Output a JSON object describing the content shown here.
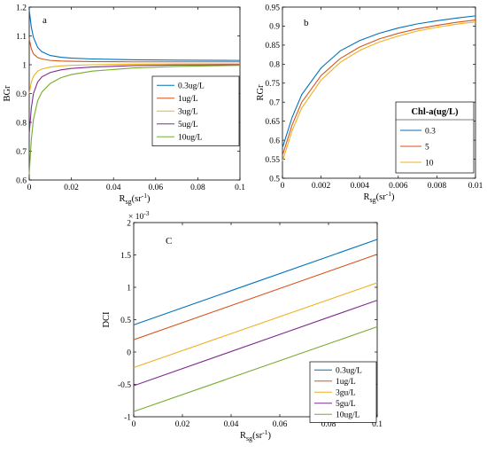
{
  "colors": [
    "#0072BD",
    "#D95319",
    "#EDB120",
    "#7E2F8E",
    "#77AC30"
  ],
  "chart_data": [
    {
      "id": "a",
      "type": "line",
      "panel_label": "a",
      "xlabel_main": "R",
      "xlabel_sub": "sg",
      "xlabel_unit": "(sr",
      "xlabel_sup": "-1",
      "xlabel_close": ")",
      "ylabel": "BGr",
      "xlim": [
        0,
        0.1
      ],
      "ylim": [
        0.6,
        1.2
      ],
      "xticks": [
        {
          "v": 0,
          "label": "0"
        },
        {
          "v": 0.02,
          "label": "0.02"
        },
        {
          "v": 0.04,
          "label": "0.04"
        },
        {
          "v": 0.06,
          "label": "0.06"
        },
        {
          "v": 0.08,
          "label": "0.08"
        },
        {
          "v": 0.1,
          "label": "0.1"
        }
      ],
      "yticks": [
        {
          "v": 0.6,
          "label": "0.6"
        },
        {
          "v": 0.7,
          "label": "0.7"
        },
        {
          "v": 0.8,
          "label": "0.8"
        },
        {
          "v": 0.9,
          "label": "0.9"
        },
        {
          "v": 1.0,
          "label": "1"
        },
        {
          "v": 1.1,
          "label": "1.1"
        },
        {
          "v": 1.2,
          "label": "1.2"
        }
      ],
      "legend_position": "center-right",
      "legend_title": "",
      "series": [
        {
          "name": "0.3ug/L",
          "x": [
            0,
            0.001,
            0.002,
            0.004,
            0.006,
            0.01,
            0.015,
            0.02,
            0.03,
            0.05,
            0.07,
            0.1
          ],
          "y": [
            1.19,
            1.13,
            1.095,
            1.06,
            1.045,
            1.032,
            1.026,
            1.023,
            1.02,
            1.017,
            1.016,
            1.015
          ]
        },
        {
          "name": "1ug/L",
          "x": [
            0,
            0.001,
            0.002,
            0.004,
            0.006,
            0.01,
            0.015,
            0.02,
            0.03,
            0.05,
            0.07,
            0.1
          ],
          "y": [
            1.09,
            1.055,
            1.038,
            1.025,
            1.02,
            1.015,
            1.013,
            1.012,
            1.011,
            1.01,
            1.01,
            1.01
          ]
        },
        {
          "name": "3ug/L",
          "x": [
            0,
            0.001,
            0.002,
            0.004,
            0.006,
            0.01,
            0.015,
            0.02,
            0.03,
            0.05,
            0.07,
            0.1
          ],
          "y": [
            0.9,
            0.94,
            0.96,
            0.978,
            0.985,
            0.992,
            0.996,
            0.998,
            1.0,
            1.002,
            1.003,
            1.003
          ]
        },
        {
          "name": "5ug/L",
          "x": [
            0,
            0.001,
            0.002,
            0.004,
            0.006,
            0.01,
            0.015,
            0.02,
            0.03,
            0.05,
            0.07,
            0.1
          ],
          "y": [
            0.76,
            0.85,
            0.9,
            0.94,
            0.958,
            0.973,
            0.982,
            0.987,
            0.992,
            0.997,
            0.999,
            1.0
          ]
        },
        {
          "name": "10ug/L",
          "x": [
            0,
            0.001,
            0.002,
            0.004,
            0.006,
            0.01,
            0.015,
            0.02,
            0.03,
            0.05,
            0.07,
            0.1
          ],
          "y": [
            0.62,
            0.74,
            0.81,
            0.875,
            0.905,
            0.935,
            0.955,
            0.966,
            0.978,
            0.989,
            0.994,
            0.998
          ]
        }
      ]
    },
    {
      "id": "b",
      "type": "line",
      "panel_label": "b",
      "xlabel_main": "R",
      "xlabel_sub": "sg",
      "xlabel_unit": "(sr",
      "xlabel_sup": "-1",
      "xlabel_close": ")",
      "ylabel": "RGr",
      "xlim": [
        0,
        0.01
      ],
      "ylim": [
        0.5,
        0.95
      ],
      "xticks": [
        {
          "v": 0,
          "label": "0"
        },
        {
          "v": 0.002,
          "label": "0.002"
        },
        {
          "v": 0.004,
          "label": "0.004"
        },
        {
          "v": 0.006,
          "label": "0.006"
        },
        {
          "v": 0.008,
          "label": "0.008"
        },
        {
          "v": 0.01,
          "label": "0.01"
        }
      ],
      "yticks": [
        {
          "v": 0.5,
          "label": "0.5"
        },
        {
          "v": 0.55,
          "label": "0.55"
        },
        {
          "v": 0.6,
          "label": "0.6"
        },
        {
          "v": 0.65,
          "label": "0.65"
        },
        {
          "v": 0.7,
          "label": "0.7"
        },
        {
          "v": 0.75,
          "label": "0.75"
        },
        {
          "v": 0.8,
          "label": "0.8"
        },
        {
          "v": 0.85,
          "label": "0.85"
        },
        {
          "v": 0.9,
          "label": "0.9"
        },
        {
          "v": 0.95,
          "label": "0.95"
        }
      ],
      "legend_position": "lower-right",
      "legend_title": "Chl-a(ug/L)",
      "series": [
        {
          "name": "0.3",
          "x": [
            0,
            0.0005,
            0.001,
            0.002,
            0.003,
            0.004,
            0.005,
            0.006,
            0.007,
            0.008,
            0.009,
            0.01
          ],
          "y": [
            0.58,
            0.66,
            0.72,
            0.79,
            0.835,
            0.862,
            0.881,
            0.895,
            0.906,
            0.914,
            0.921,
            0.927
          ]
        },
        {
          "name": "5",
          "x": [
            0,
            0.0005,
            0.001,
            0.002,
            0.003,
            0.004,
            0.005,
            0.006,
            0.007,
            0.008,
            0.009,
            0.01
          ],
          "y": [
            0.56,
            0.64,
            0.7,
            0.77,
            0.815,
            0.845,
            0.866,
            0.881,
            0.893,
            0.902,
            0.91,
            0.916
          ]
        },
        {
          "name": "10",
          "x": [
            0,
            0.0005,
            0.001,
            0.002,
            0.003,
            0.004,
            0.005,
            0.006,
            0.007,
            0.008,
            0.009,
            0.01
          ],
          "y": [
            0.545,
            0.625,
            0.685,
            0.758,
            0.805,
            0.836,
            0.858,
            0.874,
            0.887,
            0.897,
            0.905,
            0.911
          ]
        }
      ]
    },
    {
      "id": "c",
      "type": "line",
      "panel_label": "C",
      "xlabel_main": "R",
      "xlabel_sub": "sg",
      "xlabel_unit": "(sr",
      "xlabel_sup": "-1",
      "xlabel_close": ")",
      "ylabel": "DCI",
      "y_multiplier_base": "× 10",
      "y_multiplier_exp": "-3",
      "xlim": [
        0,
        0.1
      ],
      "ylim": [
        -1,
        2
      ],
      "xticks": [
        {
          "v": 0,
          "label": "0"
        },
        {
          "v": 0.02,
          "label": "0.02"
        },
        {
          "v": 0.04,
          "label": "0.04"
        },
        {
          "v": 0.06,
          "label": "0.06"
        },
        {
          "v": 0.08,
          "label": "0.08"
        },
        {
          "v": 0.1,
          "label": "0.1"
        }
      ],
      "yticks": [
        {
          "v": -1,
          "label": "-1"
        },
        {
          "v": -0.5,
          "label": "-0.5"
        },
        {
          "v": 0,
          "label": "0"
        },
        {
          "v": 0.5,
          "label": "0.5"
        },
        {
          "v": 1,
          "label": "1"
        },
        {
          "v": 1.5,
          "label": "1.5"
        },
        {
          "v": 2,
          "label": "2"
        }
      ],
      "legend_position": "lower-right",
      "legend_title": "",
      "series": [
        {
          "name": "0.3ug/L",
          "x": [
            0,
            0.1
          ],
          "y": [
            0.42,
            1.74
          ]
        },
        {
          "name": "1ug/L",
          "x": [
            0,
            0.1
          ],
          "y": [
            0.19,
            1.51
          ]
        },
        {
          "name": "3gu/L",
          "x": [
            0,
            0.1
          ],
          "y": [
            -0.24,
            1.07
          ]
        },
        {
          "name": "5gu/L",
          "x": [
            0,
            0.1
          ],
          "y": [
            -0.52,
            0.8
          ]
        },
        {
          "name": "10ug/L",
          "x": [
            0,
            0.1
          ],
          "y": [
            -0.92,
            0.39
          ]
        }
      ]
    }
  ]
}
